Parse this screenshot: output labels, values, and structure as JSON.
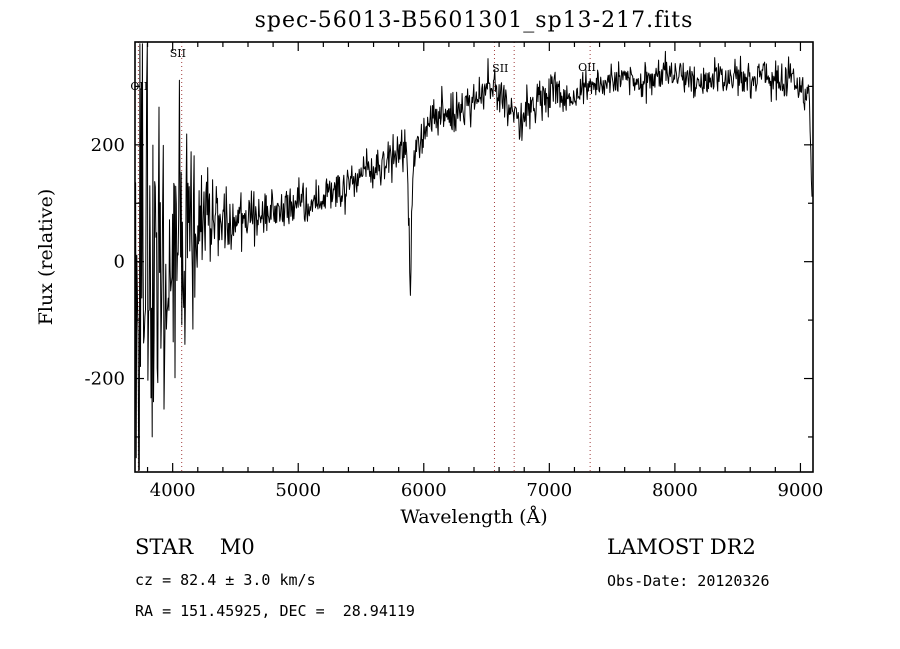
{
  "title": "spec-56013-B5601301_sp13-217.fits",
  "chart_data": {
    "type": "line",
    "title": "spec-56013-B5601301_sp13-217.fits",
    "xlabel": "Wavelength (Å)",
    "ylabel": "Flux (relative)",
    "xlim": [
      3700,
      9100
    ],
    "ylim": [
      -360,
      376
    ],
    "xticks": [
      4000,
      5000,
      6000,
      7000,
      8000,
      9000
    ],
    "yticks": [
      -200,
      0,
      200
    ],
    "x_minor_step": 200,
    "y_minor_step": 100,
    "line_color": "#000000",
    "marker_color": "#a03c3c",
    "seed": 42,
    "n_points": 1100,
    "line_markers": [
      {
        "label": "OII",
        "wavelength": 3727,
        "label_dx": -8,
        "label_y": 90
      },
      {
        "label": "SII",
        "wavelength": 4072,
        "label_dx": -12,
        "label_y": 57
      },
      {
        "label": "",
        "wavelength": 6563,
        "label_dx": 0,
        "label_y": 0
      },
      {
        "label": "SII",
        "wavelength": 6720,
        "label_dx": -22,
        "label_y": 72
      },
      {
        "label": "OII",
        "wavelength": 7325,
        "label_dx": -12,
        "label_y": 71
      }
    ],
    "continuum": [
      [
        3700,
        10
      ],
      [
        3800,
        15
      ],
      [
        3900,
        25
      ],
      [
        4000,
        35
      ],
      [
        4100,
        48
      ],
      [
        4200,
        60
      ],
      [
        4300,
        68
      ],
      [
        4500,
        78
      ],
      [
        4700,
        82
      ],
      [
        4900,
        88
      ],
      [
        5000,
        92
      ],
      [
        5100,
        98
      ],
      [
        5200,
        105
      ],
      [
        5300,
        118
      ],
      [
        5400,
        130
      ],
      [
        5500,
        148
      ],
      [
        5600,
        160
      ],
      [
        5700,
        172
      ],
      [
        5800,
        180
      ],
      [
        5860,
        185
      ],
      [
        5950,
        195
      ],
      [
        6000,
        220
      ],
      [
        6100,
        240
      ],
      [
        6200,
        250
      ],
      [
        6300,
        258
      ],
      [
        6400,
        280
      ],
      [
        6500,
        295
      ],
      [
        6560,
        300
      ],
      [
        6620,
        282
      ],
      [
        6700,
        252
      ],
      [
        6760,
        238
      ],
      [
        6850,
        262
      ],
      [
        6950,
        282
      ],
      [
        7050,
        292
      ],
      [
        7150,
        275
      ],
      [
        7250,
        292
      ],
      [
        7350,
        300
      ],
      [
        7420,
        295
      ],
      [
        7500,
        310
      ],
      [
        7600,
        318
      ],
      [
        7700,
        312
      ],
      [
        7800,
        316
      ],
      [
        8000,
        318
      ],
      [
        8200,
        312
      ],
      [
        8400,
        318
      ],
      [
        8600,
        312
      ],
      [
        8800,
        316
      ],
      [
        8950,
        305
      ],
      [
        9040,
        295
      ],
      [
        9070,
        280
      ],
      [
        9095,
        60
      ]
    ],
    "noise_profile": [
      [
        3700,
        310
      ],
      [
        3730,
        290
      ],
      [
        3770,
        260
      ],
      [
        3820,
        225
      ],
      [
        3870,
        195
      ],
      [
        3920,
        165
      ],
      [
        3970,
        145
      ],
      [
        4020,
        125
      ],
      [
        4070,
        105
      ],
      [
        4120,
        90
      ],
      [
        4170,
        75
      ],
      [
        4220,
        58
      ],
      [
        4270,
        45
      ],
      [
        4330,
        35
      ],
      [
        4430,
        28
      ],
      [
        4600,
        22
      ],
      [
        4900,
        18
      ],
      [
        5300,
        17
      ],
      [
        5700,
        18
      ],
      [
        6000,
        22
      ],
      [
        6200,
        20
      ],
      [
        6500,
        18
      ],
      [
        6800,
        18
      ],
      [
        7100,
        16
      ],
      [
        7500,
        14
      ],
      [
        8000,
        14
      ],
      [
        8500,
        16
      ],
      [
        9000,
        20
      ],
      [
        9095,
        26
      ]
    ],
    "absorption_features": [
      {
        "center": 5893,
        "depth": 260,
        "width": 11
      }
    ]
  },
  "annotations": {
    "class_label": "STAR    M0",
    "survey": "LAMOST DR2",
    "cz": "cz = 82.4 ± 3.0 km/s",
    "obs_date": "Obs-Date: 20120326",
    "radec": "RA = 151.45925, DEC =  28.94119"
  }
}
